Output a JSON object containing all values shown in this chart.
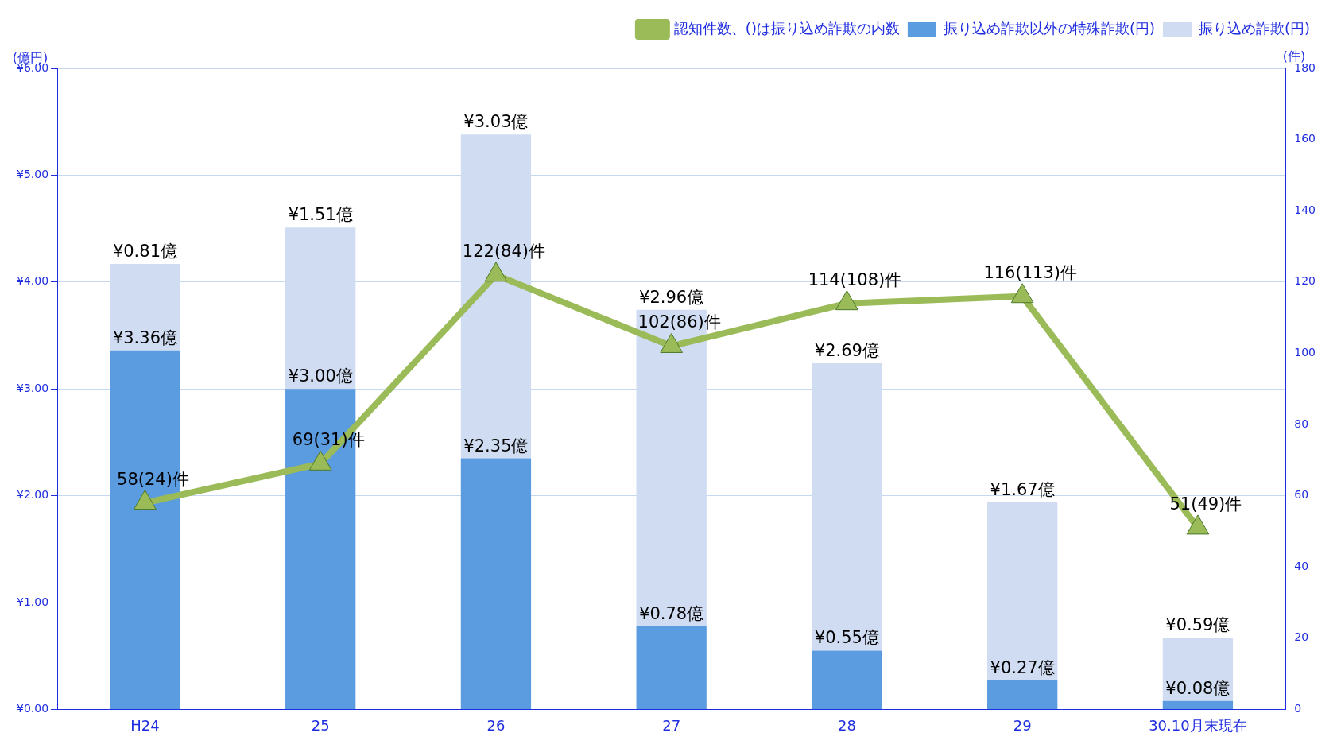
{
  "chart_data": {
    "type": "bar",
    "stacked": true,
    "ylabel": "(億円)",
    "y2label": "(件)",
    "categories": [
      "H24",
      "25",
      "26",
      "27",
      "28",
      "29",
      "30.10月末現在"
    ],
    "series": [
      {
        "name": "振り込め詐欺以外の特殊詐欺(円)",
        "color": "#5b9be0",
        "values": [
          3.36,
          3.0,
          2.35,
          0.78,
          0.55,
          0.27,
          0.08
        ],
        "value_labels": [
          "¥3.36億",
          "¥3.00億",
          "¥2.35億",
          "¥0.78億",
          "¥0.55億",
          "¥0.27億",
          "¥0.08億"
        ]
      },
      {
        "name": "振り込め詐欺(円)",
        "color": "#cfdcf2",
        "values": [
          0.81,
          1.51,
          3.03,
          2.96,
          2.69,
          1.67,
          0.59
        ],
        "value_labels": [
          "¥0.81億",
          "¥1.51億",
          "¥3.03億",
          "¥2.96億",
          "¥2.69億",
          "¥1.67億",
          "¥0.59億"
        ]
      },
      {
        "name": "認知件数、()は振り込め詐欺の内数",
        "type": "line",
        "axis": "y2",
        "color": "#9bbb59",
        "marker": "triangle",
        "values": [
          58,
          69,
          122,
          102,
          114,
          116,
          51
        ],
        "value_labels": [
          "58(24)件",
          "69(31)件",
          "122(84)件",
          "102(86)件",
          "114(108)件",
          "116(113)件",
          "51(49)件"
        ]
      }
    ],
    "ylim": [
      0,
      6
    ],
    "yticks": [
      {
        "value": 0,
        "label": "¥0.00"
      },
      {
        "value": 1,
        "label": "¥1.00"
      },
      {
        "value": 2,
        "label": "¥2.00"
      },
      {
        "value": 3,
        "label": "¥3.00"
      },
      {
        "value": 4,
        "label": "¥4.00"
      },
      {
        "value": 5,
        "label": "¥5.00"
      },
      {
        "value": 6,
        "label": "¥6.00"
      }
    ],
    "y2lim": [
      0,
      180
    ],
    "y2ticks": [
      0,
      20,
      40,
      60,
      80,
      100,
      120,
      140,
      160,
      180
    ],
    "grid": "y",
    "legend": "top right"
  }
}
